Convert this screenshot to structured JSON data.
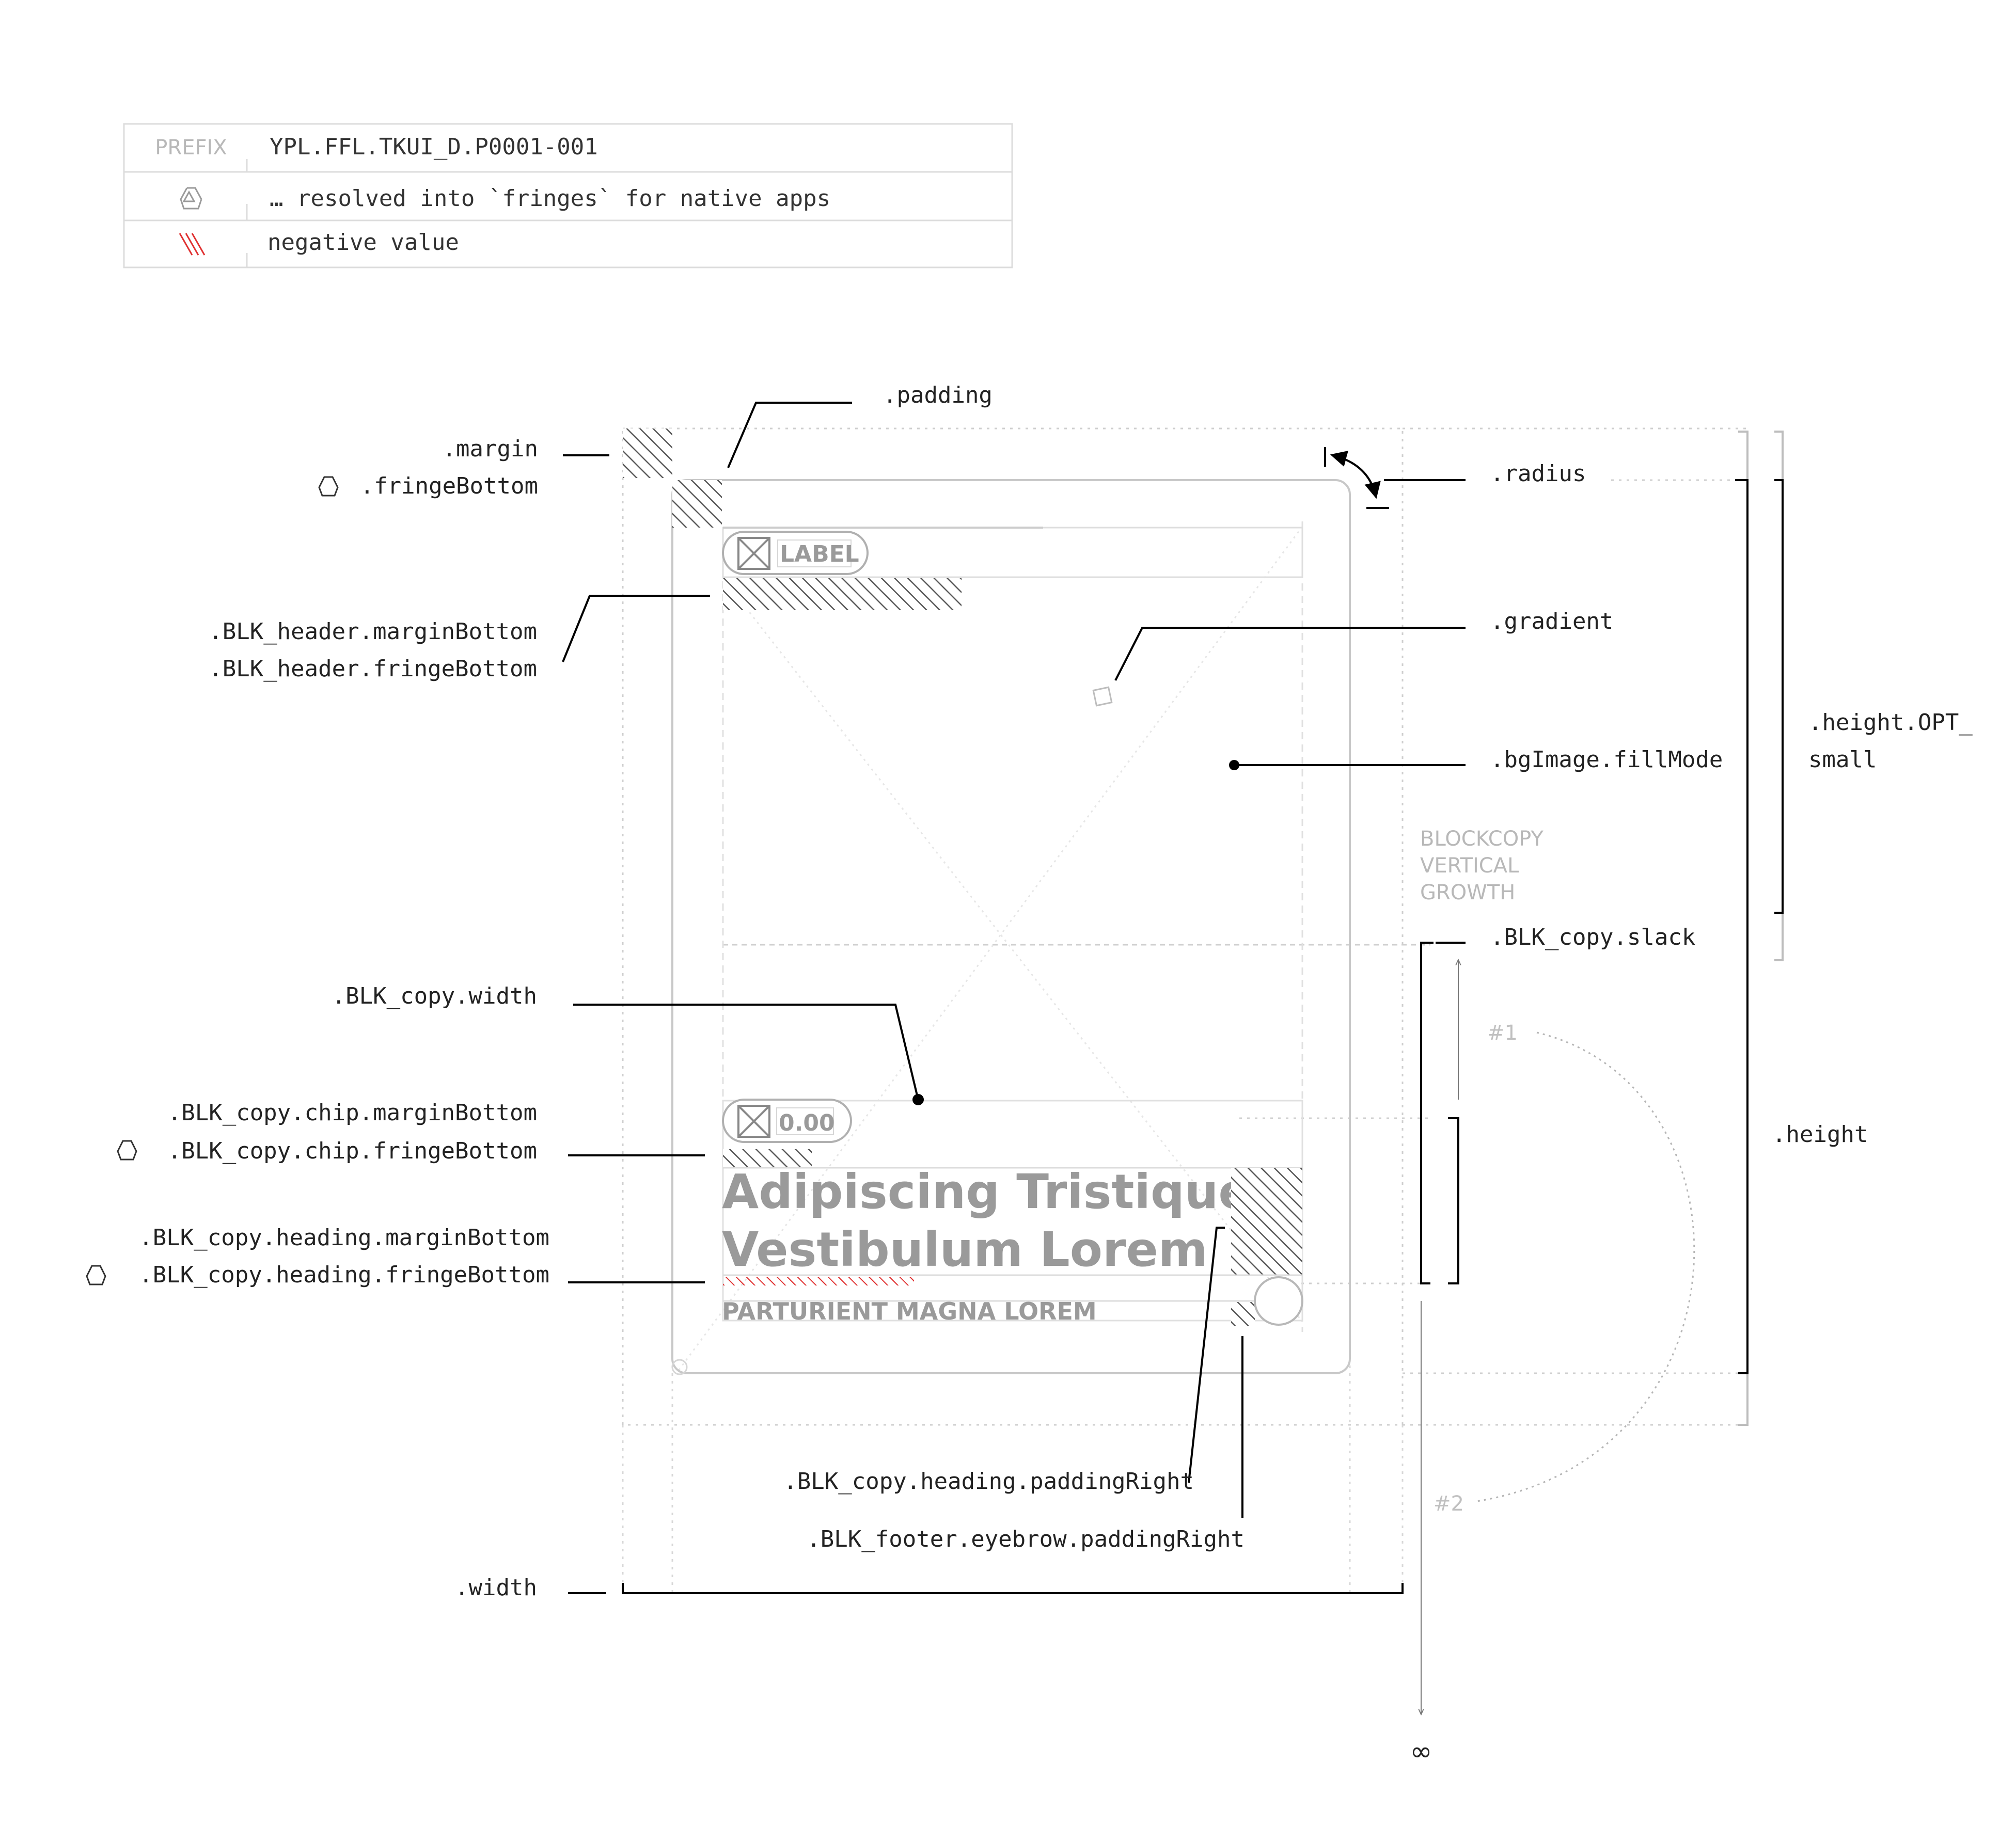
{
  "legend": {
    "prefix_label": "PREFIX",
    "prefix_value": "YPL.FFL.TKUI_D.P0001-001",
    "fringe_note": "… resolved into `fringes` for native apps",
    "negative_note": "negative value",
    "fringe_icon": "recycle-icon",
    "negative_icon": "red-hatch-icon",
    "accent_color": "#e03030"
  },
  "annotations": {
    "padding": ".padding",
    "margin": ".margin",
    "fringe_bottom": ".fringeBottom",
    "radius": ".radius",
    "gradient": ".gradient",
    "bg_image_fill_mode": ".bgImage.fillMode",
    "height_opt_line1": ".height.OPT_",
    "height_opt_line2": "small",
    "header_margin_bottom": ".BLK_header.marginBottom",
    "header_fringe_bottom": ".BLK_header.fringeBottom",
    "blockcopy_growth_line1": "BLOCKCOPY",
    "blockcopy_growth_line2": "VERTICAL",
    "blockcopy_growth_line3": "GROWTH",
    "copy_slack": ".BLK_copy.slack",
    "copy_width": ".BLK_copy.width",
    "chip_margin_bottom": ".BLK_copy.chip.marginBottom",
    "chip_fringe_bottom": ".BLK_copy.chip.fringeBottom",
    "height": ".height",
    "heading_margin_bottom": ".BLK_copy.heading.marginBottom",
    "heading_fringe_bottom": ".BLK_copy.heading.fringeBottom",
    "heading_padding_right": ".BLK_copy.heading.paddingRight",
    "footer_eyebrow_padding_right": ".BLK_footer.eyebrow.paddingRight",
    "width": ".width",
    "step_1": "#1",
    "step_2": "#2",
    "infinity": "∞"
  },
  "card": {
    "header_chip_label": "LABEL",
    "copy_chip_value": "0.00",
    "heading_line1": "Adipiscing Tristique",
    "heading_line2": "Vestibulum Lorem",
    "eyebrow": "PARTURIENT MAGNA LOREM",
    "chip_icon": "image-placeholder-icon",
    "text_color": "#9a9a9a"
  }
}
